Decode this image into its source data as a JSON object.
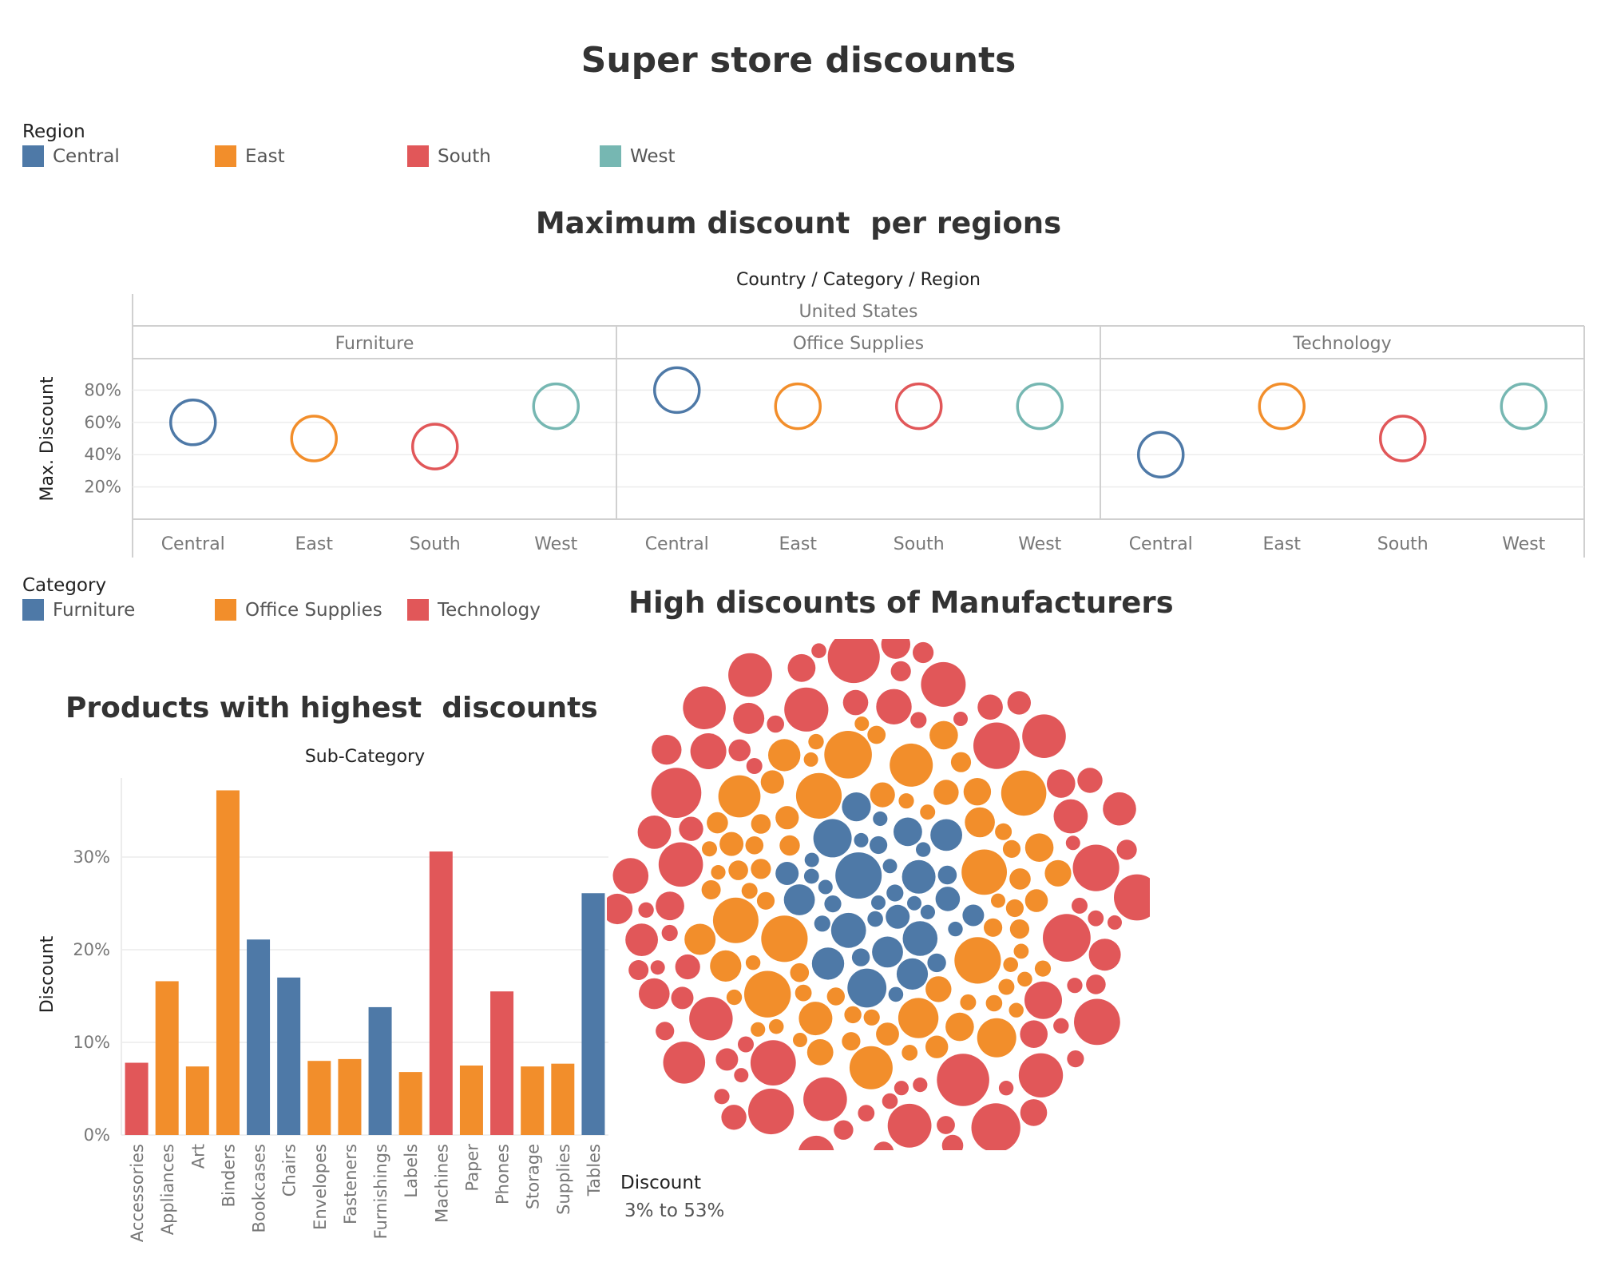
{
  "dashboard": {
    "title": "Super store discounts"
  },
  "region_legend": {
    "title": "Region",
    "items": [
      {
        "label": "Central",
        "color": "#4e79a7"
      },
      {
        "label": "East",
        "color": "#f28e2b"
      },
      {
        "label": "South",
        "color": "#e15759"
      },
      {
        "label": "West",
        "color": "#76b7b2"
      }
    ]
  },
  "category_legend": {
    "title": "Category",
    "items": [
      {
        "label": "Furniture",
        "color": "#4e79a7"
      },
      {
        "label": "Office Supplies",
        "color": "#f28e2b"
      },
      {
        "label": "Technology",
        "color": "#e15759"
      }
    ]
  },
  "size_legend": {
    "title": "Discount",
    "range": "3% to 53%"
  },
  "chart_data": [
    {
      "type": "scatter",
      "title": "Maximum discount  per regions",
      "header_title": "Country / Category / Region",
      "country": "United States",
      "ylabel": "Max. Discount",
      "ylim": [
        0,
        1.0
      ],
      "yticks": [
        0.2,
        0.4,
        0.6,
        0.8
      ],
      "ytick_labels": [
        "20%",
        "40%",
        "60%",
        "80%"
      ],
      "grid": true,
      "panels": [
        {
          "category": "Furniture",
          "points": [
            {
              "region": "Central",
              "value": 0.6,
              "color": "#4e79a7"
            },
            {
              "region": "East",
              "value": 0.5,
              "color": "#f28e2b"
            },
            {
              "region": "South",
              "value": 0.45,
              "color": "#e15759"
            },
            {
              "region": "West",
              "value": 0.7,
              "color": "#76b7b2"
            }
          ]
        },
        {
          "category": "Office Supplies",
          "points": [
            {
              "region": "Central",
              "value": 0.8,
              "color": "#4e79a7"
            },
            {
              "region": "East",
              "value": 0.7,
              "color": "#f28e2b"
            },
            {
              "region": "South",
              "value": 0.7,
              "color": "#e15759"
            },
            {
              "region": "West",
              "value": 0.7,
              "color": "#76b7b2"
            }
          ]
        },
        {
          "category": "Technology",
          "points": [
            {
              "region": "Central",
              "value": 0.4,
              "color": "#4e79a7"
            },
            {
              "region": "East",
              "value": 0.7,
              "color": "#f28e2b"
            },
            {
              "region": "South",
              "value": 0.5,
              "color": "#e15759"
            },
            {
              "region": "West",
              "value": 0.7,
              "color": "#76b7b2"
            }
          ]
        }
      ]
    },
    {
      "type": "bar",
      "title": "Products with highest  discounts",
      "header_title": "Sub-Category",
      "ylabel": "Discount",
      "ylim": [
        0,
        0.38
      ],
      "yticks": [
        0,
        0.1,
        0.2,
        0.3
      ],
      "ytick_labels": [
        "0%",
        "10%",
        "20%",
        "30%"
      ],
      "grid": true,
      "categories": [
        "Accessories",
        "Appliances",
        "Art",
        "Binders",
        "Bookcases",
        "Chairs",
        "Envelopes",
        "Fasteners",
        "Furnishings",
        "Labels",
        "Machines",
        "Paper",
        "Phones",
        "Storage",
        "Supplies",
        "Tables"
      ],
      "values": [
        0.078,
        0.166,
        0.074,
        0.372,
        0.211,
        0.17,
        0.08,
        0.082,
        0.138,
        0.068,
        0.306,
        0.075,
        0.155,
        0.074,
        0.077,
        0.261
      ],
      "colors": [
        "#e15759",
        "#f28e2b",
        "#f28e2b",
        "#f28e2b",
        "#4e79a7",
        "#4e79a7",
        "#f28e2b",
        "#f28e2b",
        "#4e79a7",
        "#f28e2b",
        "#e15759",
        "#f28e2b",
        "#e15759",
        "#f28e2b",
        "#f28e2b",
        "#4e79a7"
      ]
    },
    {
      "type": "packed-bubble",
      "title": "High discounts of Manufacturers",
      "size_range": [
        0.03,
        0.53
      ],
      "color_by": "Category"
    }
  ]
}
